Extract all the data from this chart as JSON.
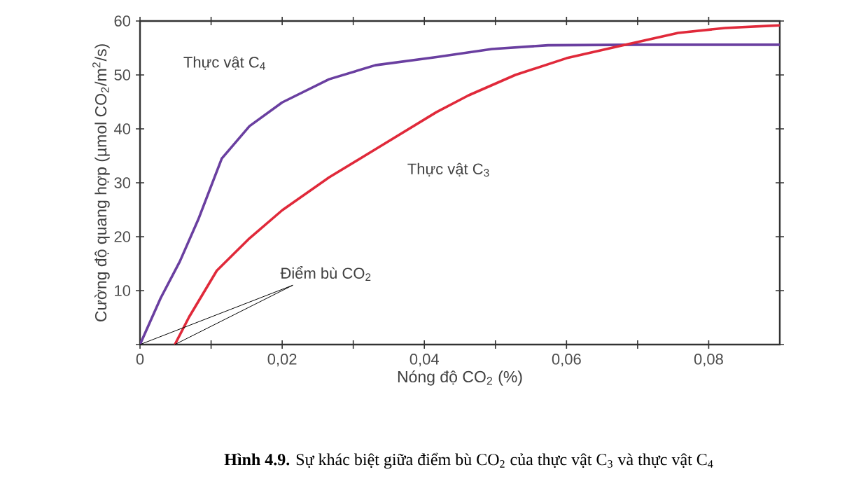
{
  "chart_data": {
    "type": "line",
    "xlabel": "Nóng độ CO$_{2}$ (%)",
    "ylabel": "Cường độ quang hợp (µmol CO$_{2}$/m$^{2}$/s)",
    "annotations": [
      {
        "text": "Điểm bù CO$_{2}$",
        "x": 0,
        "y": 0
      },
      "**Hình 4.9.** Sự khác biệt giữa điểm bù CO$_{2}$ của thực vật C$_{3}$ và thực vật C$_{4}$"
    ],
    "xlim": [
      0,
      0.09
    ],
    "ylim": [
      0,
      60
    ],
    "xticks": [
      {
        "value": 0,
        "label": "0"
      },
      {
        "value": 0.01,
        "label": null
      },
      {
        "value": 0.02,
        "label": "0,02"
      },
      {
        "value": 0.03,
        "label": null
      },
      {
        "value": 0.04,
        "label": "0,04"
      },
      {
        "value": 0.05,
        "label": null
      },
      {
        "value": 0.06,
        "label": "0,06"
      },
      {
        "value": 0.07,
        "label": null
      },
      {
        "value": 0.08,
        "label": "0,08"
      }
    ],
    "yticks": [
      {
        "value": 0,
        "label": null
      },
      10,
      20,
      30,
      40,
      50,
      60
    ],
    "grid": false,
    "legend": false,
    "marker": "none",
    "line_style": "solid",
    "series": [
      {
        "name": "Thực vật C$_{4}$",
        "color": "#6a3fa0",
        "x": [
          0,
          0.0029,
          0.0056,
          0.0082,
          0.0115,
          0.0154,
          0.02,
          0.0266,
          0.0331,
          0.0417,
          0.0495,
          0.0574,
          0.07,
          0.09
        ],
        "values": [
          0,
          8.6,
          15.4,
          23.2,
          34.5,
          40.5,
          44.9,
          49.2,
          51.8,
          53.3,
          54.8,
          55.5,
          55.6,
          55.6
        ]
      },
      {
        "name": "Thực vật C$_{3}$",
        "color": "#e0293a",
        "x": [
          0.0049,
          0.0069,
          0.0108,
          0.0154,
          0.02,
          0.0266,
          0.0331,
          0.0417,
          0.0462,
          0.0528,
          0.06,
          0.0679,
          0.0757,
          0.0823,
          0.09
        ],
        "values": [
          0,
          5.1,
          13.7,
          19.7,
          24.9,
          31,
          36.2,
          43.1,
          46.2,
          50,
          53.1,
          55.5,
          57.8,
          58.7,
          59.2
        ]
      }
    ]
  }
}
